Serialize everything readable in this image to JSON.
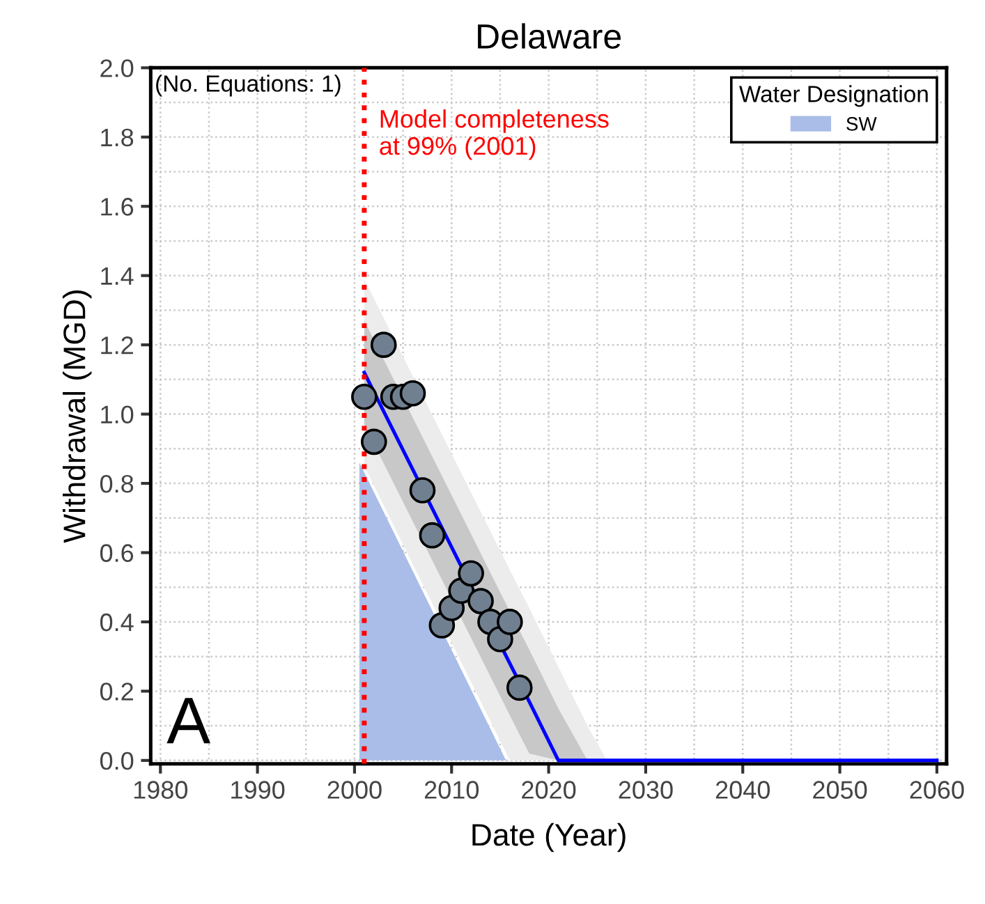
{
  "chart_data": {
    "type": "scatter",
    "title": "Delaware",
    "xlabel": "Date (Year)",
    "ylabel": "Withdrawal (MGD)",
    "legend_title": "Water Designation",
    "legend": "top right",
    "grid": true,
    "xlim": [
      1979,
      2061
    ],
    "xticks": [
      1980,
      1990,
      2000,
      2010,
      2020,
      2030,
      2040,
      2050,
      2060
    ],
    "ylim": [
      -0.01,
      2.0
    ],
    "yticks": [
      {
        "value": 0,
        "label": "0.0"
      },
      0.2,
      0.4,
      0.6,
      0.8,
      {
        "value": 1,
        "label": "1.0"
      },
      1.2,
      1.4,
      1.6,
      1.8,
      {
        "value": 2,
        "label": "2.0"
      }
    ],
    "series": [
      {
        "type": "area",
        "name": "SW",
        "color": "#aabde8",
        "x": [
          2000.5,
          2015.6
        ],
        "values": [
          0.86,
          0
        ]
      },
      {
        "type": "line",
        "color": "#ececec",
        "x": [
          2001,
          2016,
          2018,
          2021,
          2024,
          2026
        ],
        "values": [
          null,
          null,
          null,
          null,
          null,
          null
        ],
        "lower": [
          0.85,
          0,
          0,
          0,
          0,
          0
        ],
        "upper": [
          1.39,
          0.55,
          0.44,
          0.27,
          0.1,
          0
        ]
      },
      {
        "type": "line",
        "color": "#0000ff",
        "x": [
          2001,
          2016,
          2018,
          2021,
          2024,
          2026,
          2060
        ],
        "values": [
          1.12,
          0.28,
          0.17,
          0,
          0,
          0,
          0
        ],
        "lower": [
          0.97,
          0.13,
          0.02,
          0,
          0,
          0,
          0
        ],
        "upper": [
          1.27,
          0.43,
          0.32,
          0.15,
          0,
          0,
          0
        ]
      },
      {
        "color": "#708090",
        "marker": "circle",
        "x": [
          2001,
          2002,
          2003,
          2004,
          2005,
          2006,
          2007,
          2008,
          2009,
          2010,
          2011,
          2012,
          2013,
          2014,
          2015,
          2016,
          2017
        ],
        "values": [
          1.05,
          0.92,
          1.2,
          1.05,
          1.05,
          1.06,
          0.78,
          0.65,
          0.39,
          0.44,
          0.49,
          0.54,
          0.46,
          0.4,
          0.35,
          0.4,
          0.21
        ]
      }
    ],
    "ref_lines": [
      {
        "axis": "x",
        "value": 2001,
        "label": "Model completeness\nat 99% (2001)",
        "color": "#ff0000",
        "line_style": "dotted"
      }
    ],
    "annotations": [
      "(No. Equations: 1)",
      "A"
    ]
  }
}
